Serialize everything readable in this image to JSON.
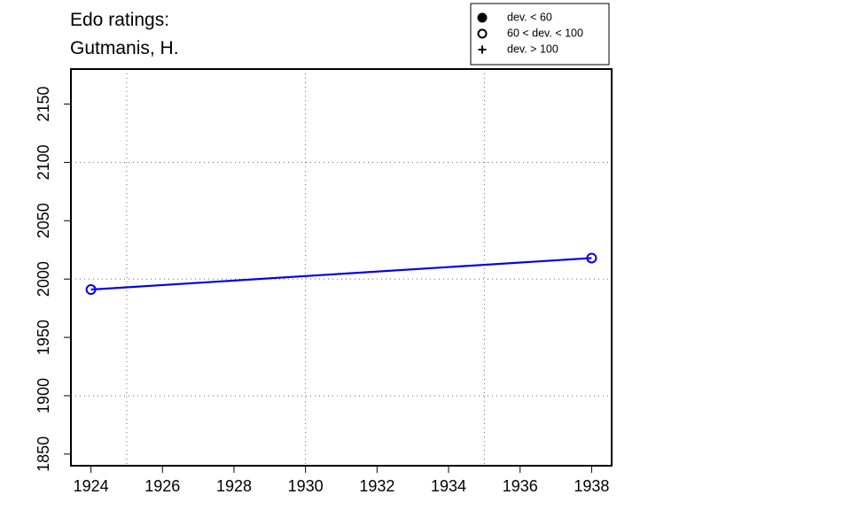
{
  "chart_data": {
    "type": "line",
    "title": [
      "Edo ratings:",
      "Gutmanis, H."
    ],
    "x": [
      1924,
      1938
    ],
    "series": [
      {
        "color": "#0000ee",
        "marker": "open",
        "values": [
          1991,
          2018
        ]
      }
    ],
    "xlim": [
      1923.44,
      1938.56
    ],
    "ylim": [
      1840,
      2180
    ],
    "xticks": [
      1924,
      1926,
      1928,
      1930,
      1932,
      1934,
      1936,
      1938
    ],
    "yticks": [
      1850,
      1900,
      1950,
      2000,
      2050,
      2100,
      2150
    ],
    "xgrid": [
      1925,
      1930,
      1935
    ],
    "ygrid": [
      1900,
      2000,
      2100
    ],
    "legend_position": "top",
    "legend": [
      {
        "label": "dev. < 60",
        "symbol": "filled"
      },
      {
        "label": "60 < dev. < 100",
        "symbol": "open"
      },
      {
        "label": "dev. > 100",
        "symbol": "plus"
      }
    ]
  }
}
